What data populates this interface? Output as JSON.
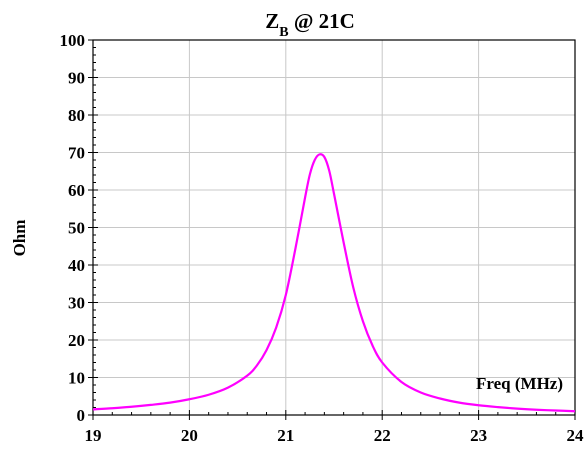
{
  "chart_data": {
    "type": "line",
    "title": {
      "main": "Z",
      "subscript": "B",
      "rest": " @ 21C"
    },
    "xlabel": "Freq (MHz)",
    "ylabel": "Ohm",
    "xlim": [
      19,
      24
    ],
    "ylim": [
      0,
      100
    ],
    "x_ticks": [
      "19",
      "20",
      "21",
      "22",
      "23",
      "24"
    ],
    "y_ticks": [
      "0",
      "10",
      "20",
      "30",
      "40",
      "50",
      "60",
      "70",
      "80",
      "90",
      "100"
    ],
    "grid": true,
    "series": [
      {
        "color": "#ff00ff",
        "x": [
          19.0,
          19.2,
          19.4,
          19.6,
          19.8,
          20.0,
          20.2,
          20.4,
          20.6,
          20.7,
          20.8,
          20.9,
          21.0,
          21.1,
          21.2,
          21.25,
          21.3,
          21.35,
          21.4,
          21.45,
          21.5,
          21.6,
          21.7,
          21.8,
          21.9,
          22.0,
          22.2,
          22.4,
          22.6,
          22.8,
          23.0,
          23.2,
          23.4,
          23.6,
          23.8,
          24.0
        ],
        "y": [
          1.5,
          1.8,
          2.2,
          2.7,
          3.3,
          4.2,
          5.4,
          7.3,
          10.5,
          13.2,
          17.3,
          23.3,
          32.0,
          44.4,
          58.0,
          64.2,
          68.0,
          69.5,
          68.8,
          65.2,
          59.0,
          46.0,
          34.0,
          25.0,
          18.5,
          14.0,
          8.8,
          6.0,
          4.4,
          3.3,
          2.6,
          2.1,
          1.7,
          1.4,
          1.2,
          1.0
        ]
      }
    ]
  }
}
